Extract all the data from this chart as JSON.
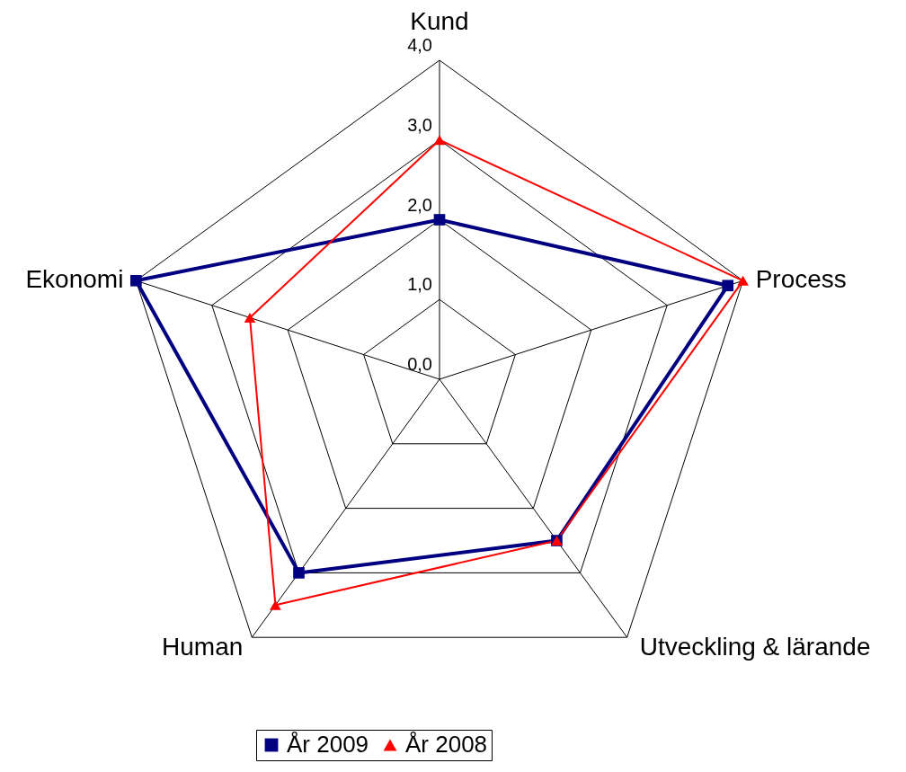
{
  "chart_data": {
    "type": "radar",
    "categories": [
      "Kund",
      "Process",
      "Utveckling & lärande",
      "Human",
      "Ekonomi"
    ],
    "series": [
      {
        "name": "År 2009",
        "color": "#000080",
        "marker": "square",
        "values": [
          2.0,
          3.8,
          2.5,
          3.0,
          4.0
        ]
      },
      {
        "name": "År 2008",
        "color": "#ff0000",
        "marker": "triangle",
        "values": [
          3.0,
          4.0,
          2.5,
          3.5,
          2.5
        ]
      }
    ],
    "ylim": [
      0,
      4
    ],
    "yticks": [
      {
        "value": 0,
        "label": "0,0"
      },
      {
        "value": 1,
        "label": "1,0"
      },
      {
        "value": 2,
        "label": "2,0"
      },
      {
        "value": 3,
        "label": "3,0"
      },
      {
        "value": 4,
        "label": "4,0"
      }
    ],
    "grid": true,
    "legend": "bottom"
  }
}
